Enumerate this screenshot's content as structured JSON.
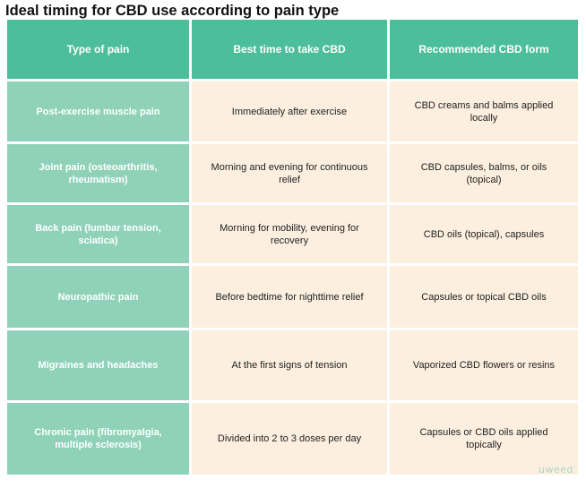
{
  "title": "Ideal timing for CBD use according to pain type",
  "headers": [
    "Type of pain",
    "Best time to take CBD",
    "Recommended CBD form"
  ],
  "rows": [
    [
      "Post-exercise muscle pain",
      "Immediately after exercise",
      "CBD creams and balms applied locally"
    ],
    [
      "Joint pain (osteoarthritis, rheumatism)",
      "Morning and evening for continuous relief",
      "CBD capsules, balms, or oils (topical)"
    ],
    [
      "Back pain (lumbar tension, sciatica)",
      "Morning for mobility, evening for recovery",
      "CBD oils (topical), capsules"
    ],
    [
      "Neuropathic pain",
      "Before bedtime for nighttime relief",
      "Capsules or topical CBD oils"
    ],
    [
      "Migraines and headaches",
      "At the first signs of tension",
      "Vaporized CBD flowers or resins"
    ],
    [
      "Chronic pain (fibromyalgia, multiple sclerosis)",
      "Divided into 2 to 3 doses per day",
      "Capsules or CBD oils applied topically"
    ]
  ],
  "logo": "uweed",
  "colors": {
    "header": "#4dbe9a",
    "row_label": "#8fd2b9",
    "cell_bg": "#fcefdf"
  }
}
